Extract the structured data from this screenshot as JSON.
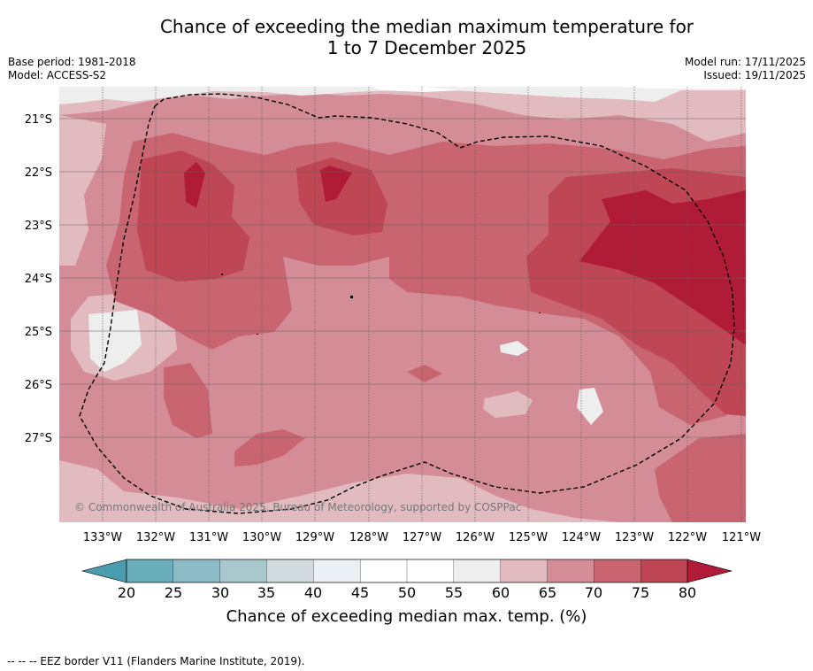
{
  "title": {
    "line1": "Chance of exceeding the median maximum temperature for",
    "line2": "1 to 7 December 2025"
  },
  "info_left": {
    "base_period": "Base period: 1981-2018",
    "model": "Model: ACCESS-S2"
  },
  "info_right": {
    "model_run": "Model run: 17/11/2025",
    "issued": "Issued: 19/11/2025"
  },
  "map": {
    "lat_labels": [
      "21°S",
      "22°S",
      "23°S",
      "24°S",
      "25°S",
      "26°S",
      "27°S"
    ],
    "lon_labels": [
      "133°W",
      "132°W",
      "131°W",
      "130°W",
      "129°W",
      "128°W",
      "127°W",
      "126°W",
      "125°W",
      "124°W",
      "123°W",
      "122°W",
      "121°W"
    ],
    "copyright": "© Commonwealth of Australia 2025, Bureau of Meteorology, supported by COSPPac"
  },
  "colorbar": {
    "ticks": [
      "20",
      "25",
      "30",
      "35",
      "40",
      "45",
      "50",
      "55",
      "60",
      "65",
      "70",
      "75",
      "80"
    ],
    "colors": [
      "#6aadbb",
      "#8cbac5",
      "#a9c8cd",
      "#d1dadd",
      "#eaf0f3",
      "#ffffff",
      "#ffffff",
      "#eeeeee",
      "#e2bbc0",
      "#d48d96",
      "#c96571",
      "#bf4654"
    ],
    "under_color": "#4a9dae",
    "over_color": "#b01c38",
    "label": "Chance of exceeding median max. temp. (%)"
  },
  "footer": "-- -- -- EEZ border V11 (Flanders Marine Institute, 2019)."
}
